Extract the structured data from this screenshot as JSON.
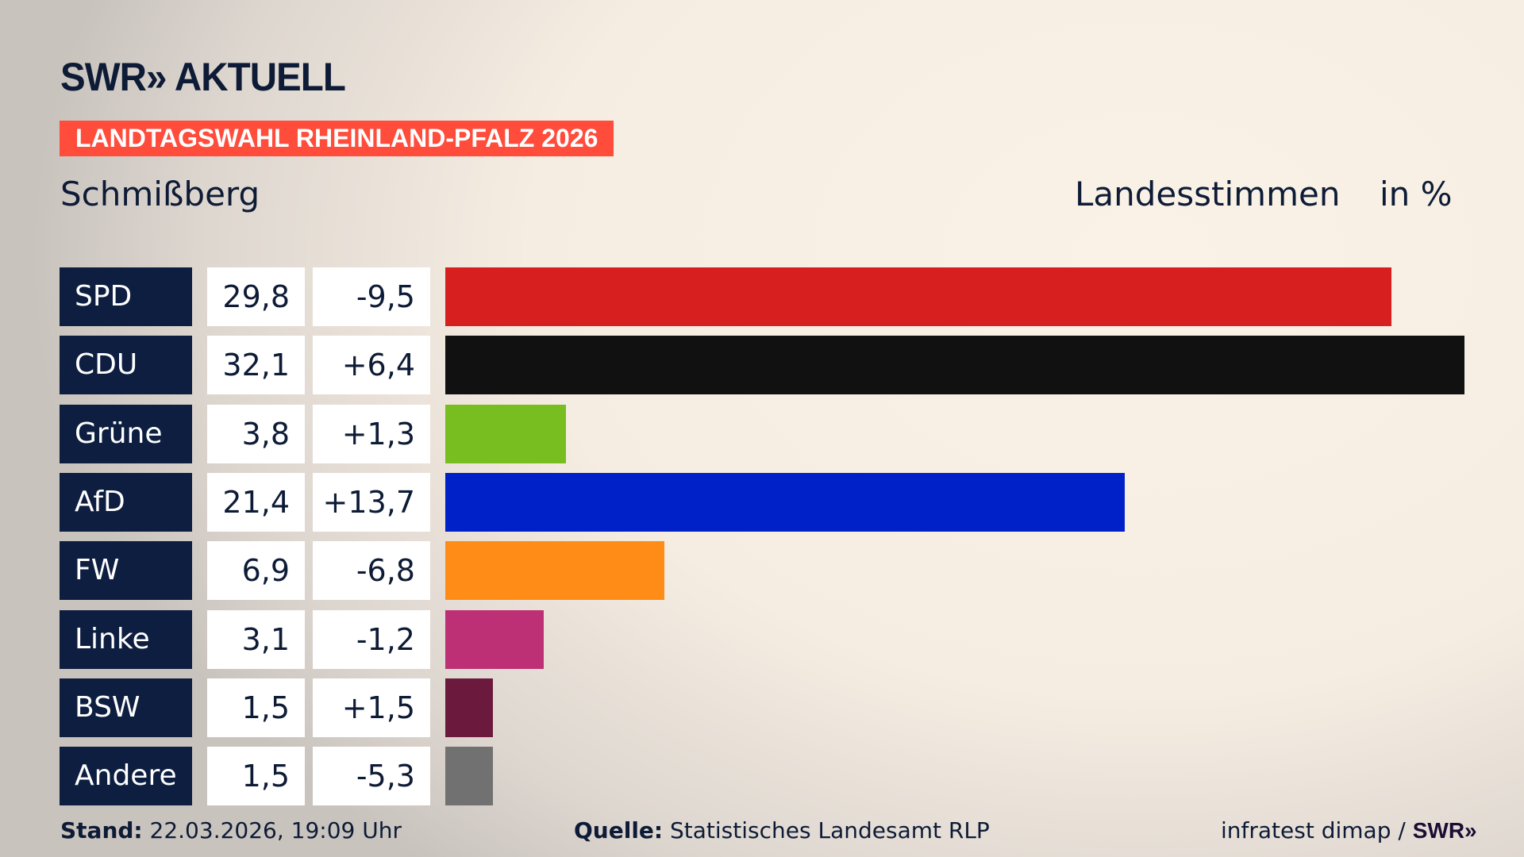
{
  "header": {
    "logo": "SWR» AKTUELL",
    "banner": "LANDTAGSWAHL RHEINLAND-PFALZ 2026",
    "place": "Schmißberg",
    "measure": "Landesstimmen",
    "unit": "in %"
  },
  "footer": {
    "stand_label": "Stand:",
    "stand_value": "22.03.2026, 19:09 Uhr",
    "source_label": "Quelle:",
    "source_value": "Statistisches Landesamt RLP",
    "credit": "infratest dimap /",
    "credit_logo": "SWR»"
  },
  "chart_data": {
    "type": "bar",
    "orientation": "horizontal",
    "xlim": [
      0,
      32.1
    ],
    "categories": [
      "SPD",
      "CDU",
      "Grüne",
      "AfD",
      "FW",
      "Linke",
      "BSW",
      "Andere"
    ],
    "values": [
      29.8,
      32.1,
      3.8,
      21.4,
      6.9,
      3.1,
      1.5,
      1.5
    ],
    "value_labels": [
      "29,8",
      "32,1",
      "3,8",
      "21,4",
      "6,9",
      "3,1",
      "1,5",
      "1,5"
    ],
    "diffs": [
      -9.5,
      6.4,
      1.3,
      13.7,
      -6.8,
      -1.2,
      1.5,
      -5.3
    ],
    "diff_labels": [
      "-9,5",
      "+6,4",
      "+1,3",
      "+13,7",
      "-6,8",
      "-1,2",
      "+1,5",
      "-5,3"
    ],
    "colors": [
      "#d71f1f",
      "#111111",
      "#78be20",
      "#0021c7",
      "#ff8c17",
      "#bd3075",
      "#6b1a3e",
      "#717171"
    ]
  }
}
